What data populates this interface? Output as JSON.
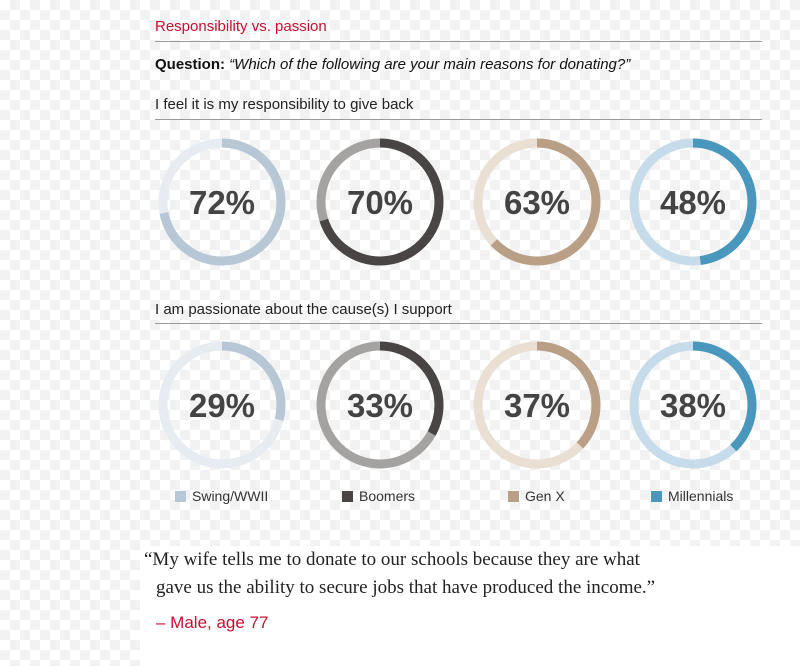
{
  "header": {
    "section_title": "Responsibility vs. passion",
    "question_label": "Question:",
    "question_text": "“Which of the following are your main reasons for donating?”"
  },
  "chart_data": {
    "type": "donut",
    "categories": [
      "Swing/WWII",
      "Boomers",
      "Gen X",
      "Millennials"
    ],
    "series": [
      {
        "name": "I feel it is my responsibility to give back",
        "values": [
          72,
          70,
          63,
          48
        ]
      },
      {
        "name": "I am passionate about the cause(s) I support",
        "values": [
          29,
          33,
          37,
          38
        ]
      }
    ],
    "unit": "%",
    "colors": {
      "Swing/WWII": {
        "fill": "#b7c7d6",
        "track": "#e6ecf2"
      },
      "Boomers": {
        "fill": "#4a4545",
        "track": "#a5a3a1"
      },
      "Gen X": {
        "fill": "#b99f85",
        "track": "#e9dfd3"
      },
      "Millennials": {
        "fill": "#4a97bd",
        "track": "#c6dcea"
      }
    },
    "label_color": "#444444"
  },
  "labels": {
    "row1": [
      "72%",
      "70%",
      "63%",
      "48%"
    ],
    "row2": [
      "29%",
      "33%",
      "37%",
      "38%"
    ]
  },
  "quote": {
    "line1": "“My wife tells me to donate to our schools because they are what",
    "line2": "gave us the ability to secure jobs that have produced the income.”",
    "attribution": "– Male, age 77"
  }
}
